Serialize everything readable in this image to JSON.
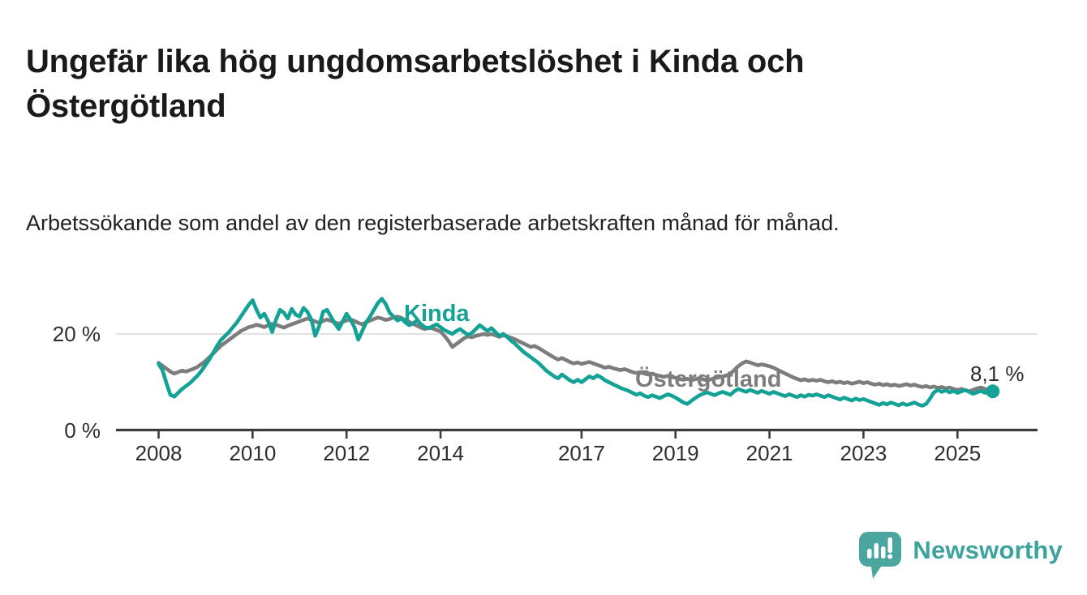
{
  "header": {
    "title": "Ungefär lika hög ungdomsarbetslöshet i Kinda och Östergötland",
    "subtitle": "Arbetssökande som andel av den registerbaserade arbetskraften månad för månad."
  },
  "chart_data": {
    "type": "line",
    "title": "Ungefär lika hög ungdomsarbetslöshet i Kinda och Östergötland",
    "x_unit": "month",
    "x_start": "2008-01",
    "x_end": "2025-10",
    "ylim": [
      0,
      28
    ],
    "grid": "horizontal-20-only",
    "legend_position": "inline-labels-on-lines",
    "y_ticks": [
      {
        "value": 0,
        "label": "0 %"
      },
      {
        "value": 20,
        "label": "20 %"
      }
    ],
    "x_ticks": [
      2008,
      2010,
      2012,
      2014,
      2017,
      2019,
      2021,
      2023,
      2025
    ],
    "series": [
      {
        "name": "Östergötland",
        "label_text": "Östergötland",
        "color": "#7d7d7d",
        "values": [
          14.0,
          13.4,
          12.8,
          12.2,
          11.8,
          12.1,
          12.4,
          12.2,
          12.5,
          12.8,
          13.2,
          13.8,
          14.4,
          15.2,
          16.0,
          16.8,
          17.6,
          18.2,
          18.8,
          19.4,
          20.0,
          20.6,
          21.0,
          21.4,
          21.6,
          21.9,
          21.7,
          21.4,
          21.8,
          22.1,
          21.9,
          21.6,
          21.3,
          21.7,
          22.0,
          22.3,
          22.6,
          22.9,
          23.2,
          22.9,
          22.6,
          22.3,
          22.7,
          23.0,
          22.7,
          22.4,
          22.1,
          22.5,
          22.8,
          23.0,
          22.7,
          22.3,
          22.0,
          22.4,
          22.8,
          23.1,
          23.4,
          23.2,
          22.9,
          23.1,
          23.4,
          23.6,
          23.3,
          22.9,
          22.5,
          22.1,
          21.7,
          21.3,
          21.0,
          21.3,
          21.1,
          20.8,
          20.5,
          19.6,
          18.6,
          17.3,
          17.9,
          18.5,
          19.1,
          19.5,
          19.3,
          19.6,
          19.8,
          20.0,
          19.8,
          20.0,
          19.7,
          19.4,
          19.7,
          19.5,
          19.2,
          18.9,
          18.5,
          18.1,
          17.7,
          17.3,
          17.5,
          17.1,
          16.6,
          16.1,
          15.6,
          15.1,
          14.7,
          15.0,
          14.6,
          14.2,
          13.9,
          14.1,
          13.8,
          14.0,
          14.2,
          13.9,
          13.6,
          13.3,
          13.0,
          13.2,
          12.9,
          12.7,
          12.5,
          12.7,
          12.4,
          12.1,
          11.9,
          12.1,
          11.8,
          11.6,
          11.8,
          11.5,
          11.3,
          11.1,
          11.3,
          11.1,
          10.9,
          10.7,
          10.5,
          10.7,
          10.4,
          10.6,
          10.8,
          10.6,
          10.4,
          10.6,
          10.8,
          11.0,
          11.2,
          11.4,
          11.7,
          12.5,
          13.3,
          13.9,
          14.3,
          14.1,
          13.8,
          13.5,
          13.7,
          13.5,
          13.3,
          13.0,
          12.6,
          12.2,
          11.8,
          11.4,
          11.0,
          10.7,
          10.4,
          10.6,
          10.3,
          10.5,
          10.3,
          10.5,
          10.2,
          10.0,
          10.2,
          9.9,
          10.1,
          9.8,
          10.0,
          9.7,
          9.9,
          10.1,
          9.8,
          10.0,
          9.7,
          9.5,
          9.7,
          9.4,
          9.6,
          9.3,
          9.5,
          9.2,
          9.4,
          9.6,
          9.3,
          9.5,
          9.2,
          9.0,
          9.2,
          8.9,
          9.1,
          8.8,
          9.0,
          8.7,
          8.9,
          8.6,
          8.4,
          8.6,
          8.3,
          8.1,
          8.4,
          8.7,
          8.9,
          8.6,
          8.4,
          8.5
        ]
      },
      {
        "name": "Kinda",
        "label_text": "Kinda",
        "color": "#15a296",
        "values": [
          13.8,
          12.5,
          9.8,
          7.4,
          7.0,
          7.8,
          8.6,
          9.2,
          9.8,
          10.6,
          11.4,
          12.4,
          13.6,
          14.8,
          16.2,
          17.6,
          18.8,
          19.6,
          20.4,
          21.4,
          22.4,
          23.6,
          24.8,
          26.0,
          27.0,
          25.0,
          23.4,
          24.2,
          22.6,
          20.4,
          23.0,
          25.0,
          24.4,
          23.2,
          25.2,
          24.0,
          23.6,
          25.4,
          24.6,
          23.0,
          19.6,
          21.6,
          24.6,
          25.0,
          23.6,
          22.2,
          21.0,
          22.6,
          24.2,
          23.0,
          21.4,
          18.8,
          20.6,
          22.4,
          23.6,
          25.0,
          26.4,
          27.3,
          26.2,
          24.4,
          23.6,
          22.8,
          23.2,
          22.4,
          21.8,
          22.2,
          22.8,
          22.0,
          21.4,
          21.2,
          21.6,
          22.0,
          21.4,
          20.8,
          20.4,
          20.0,
          20.6,
          21.0,
          20.4,
          19.8,
          20.2,
          21.0,
          21.8,
          21.2,
          20.6,
          21.2,
          20.4,
          19.6,
          20.0,
          19.4,
          18.6,
          18.0,
          17.2,
          16.4,
          15.8,
          15.2,
          14.6,
          14.0,
          13.2,
          12.4,
          11.8,
          11.2,
          10.8,
          11.6,
          11.0,
          10.4,
          10.0,
          10.5,
          10.0,
          10.6,
          11.2,
          10.8,
          11.4,
          11.0,
          10.4,
          10.0,
          9.6,
          9.2,
          8.8,
          8.5,
          8.2,
          7.8,
          7.4,
          7.7,
          7.2,
          6.9,
          7.3,
          7.0,
          6.7,
          7.1,
          7.5,
          7.2,
          6.8,
          6.3,
          5.8,
          5.5,
          6.1,
          6.7,
          7.2,
          7.6,
          7.9,
          7.6,
          7.3,
          7.7,
          8.0,
          7.7,
          7.4,
          8.1,
          8.6,
          8.3,
          8.0,
          8.4,
          8.1,
          7.8,
          8.2,
          7.9,
          7.6,
          8.0,
          7.7,
          7.4,
          7.1,
          7.5,
          7.2,
          6.9,
          7.3,
          7.0,
          7.4,
          7.2,
          7.5,
          7.2,
          6.9,
          7.3,
          7.0,
          6.7,
          6.4,
          6.8,
          6.5,
          6.2,
          6.6,
          6.3,
          6.5,
          6.2,
          5.9,
          5.6,
          5.3,
          5.7,
          5.4,
          5.8,
          5.5,
          5.2,
          5.6,
          5.3,
          5.5,
          5.8,
          5.4,
          5.1,
          5.5,
          6.6,
          7.9,
          8.4,
          8.0,
          8.3,
          7.9,
          8.2,
          7.8,
          8.1,
          8.4,
          8.0,
          7.6,
          7.9,
          8.2,
          7.8,
          7.9,
          8.1
        ]
      }
    ],
    "end_annotation": {
      "series": "Kinda",
      "label": "8,1 %",
      "value": 8.1
    }
  },
  "branding": {
    "wordmark": "Newsworthy",
    "logo_icon": "speech-bubble-bar-chart"
  },
  "colors": {
    "kinda_teal": "#15a296",
    "ostergotland_gray": "#7d7d7d",
    "axis_dark": "#3c3c3c",
    "gridline_light": "#dcdcdc",
    "text_dark": "#1a1a1a",
    "logo_teal": "#4aa69e",
    "wordmark_teal": "#3da39c"
  }
}
